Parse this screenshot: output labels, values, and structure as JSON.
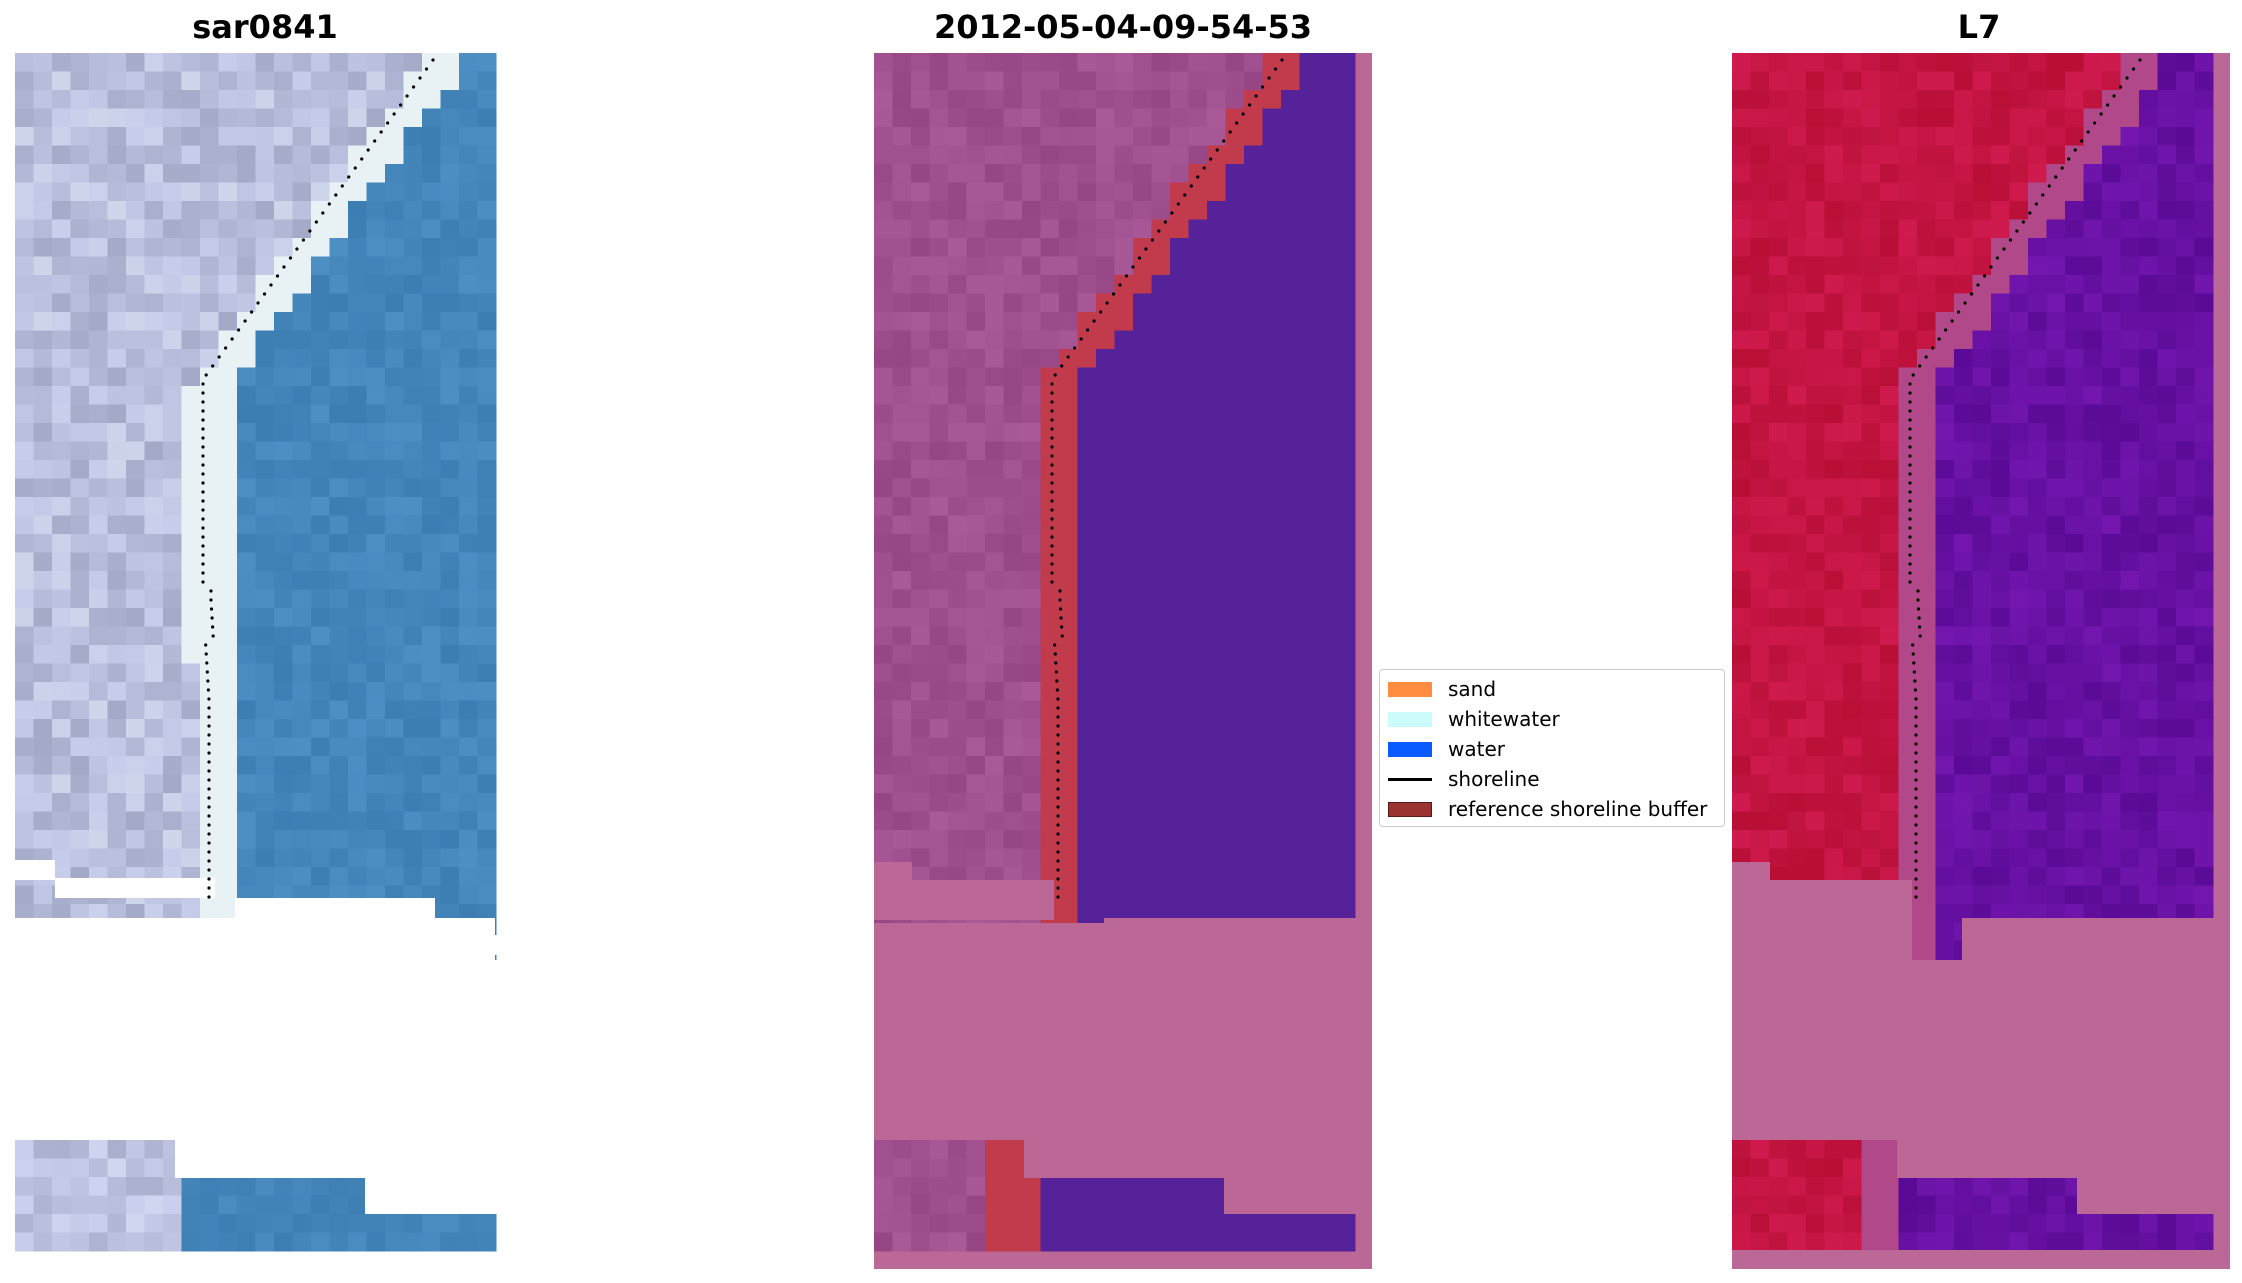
{
  "panels": [
    {
      "title": "sar0841"
    },
    {
      "title": "2012-05-04-09-54-53"
    },
    {
      "title": "L7"
    }
  ],
  "legend": [
    {
      "label": "sand",
      "color": "#ff8c3f"
    },
    {
      "label": "whitewater",
      "color": "#cbfbfb"
    },
    {
      "label": "water",
      "color": "#0a5bff"
    },
    {
      "label": "shoreline",
      "color": "#000000"
    },
    {
      "label": "reference shoreline buffer",
      "color": "#9b3232"
    }
  ],
  "colors": {
    "rgb_land": "#b8bfd8",
    "rgb_white": "#e8f2f5",
    "rgb_water": "#3f80b8",
    "class_land": "#9c4d8b",
    "class_water": "#55229a",
    "class_buffer": "#c23b4c",
    "class_nodata": "#bc6896",
    "ndwi_land": "#c01640",
    "ndwi_water": "#5e0d9e",
    "ndwi_shore": "#b0488a",
    "ndwi_nodata": "#bc6896"
  }
}
